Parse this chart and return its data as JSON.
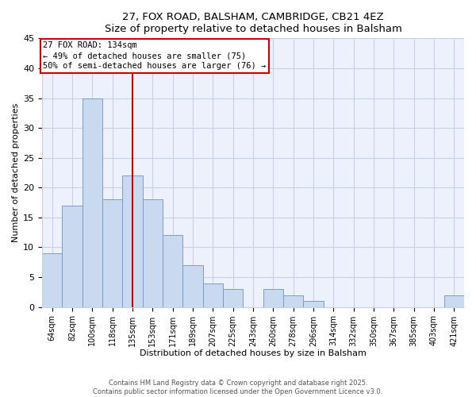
{
  "title": "27, FOX ROAD, BALSHAM, CAMBRIDGE, CB21 4EZ",
  "subtitle": "Size of property relative to detached houses in Balsham",
  "xlabel": "Distribution of detached houses by size in Balsham",
  "ylabel": "Number of detached properties",
  "bar_labels": [
    "64sqm",
    "82sqm",
    "100sqm",
    "118sqm",
    "135sqm",
    "153sqm",
    "171sqm",
    "189sqm",
    "207sqm",
    "225sqm",
    "243sqm",
    "260sqm",
    "278sqm",
    "296sqm",
    "314sqm",
    "332sqm",
    "350sqm",
    "367sqm",
    "385sqm",
    "403sqm",
    "421sqm"
  ],
  "bar_values": [
    9,
    17,
    35,
    18,
    22,
    18,
    12,
    7,
    4,
    3,
    0,
    3,
    2,
    1,
    0,
    0,
    0,
    0,
    0,
    0,
    2
  ],
  "bar_color": "#c9d9f0",
  "bar_edge_color": "#7a9cc9",
  "vline_x_index": 4,
  "vline_color": "#cc0000",
  "annotation_title": "27 FOX ROAD: 134sqm",
  "annotation_line1": "← 49% of detached houses are smaller (75)",
  "annotation_line2": "50% of semi-detached houses are larger (76) →",
  "annotation_box_color": "#cc0000",
  "ylim": [
    0,
    45
  ],
  "yticks": [
    0,
    5,
    10,
    15,
    20,
    25,
    30,
    35,
    40,
    45
  ],
  "bg_color": "#edf1fb",
  "grid_color": "#c8cfe8",
  "footer1": "Contains HM Land Registry data © Crown copyright and database right 2025.",
  "footer2": "Contains public sector information licensed under the Open Government Licence v3.0."
}
